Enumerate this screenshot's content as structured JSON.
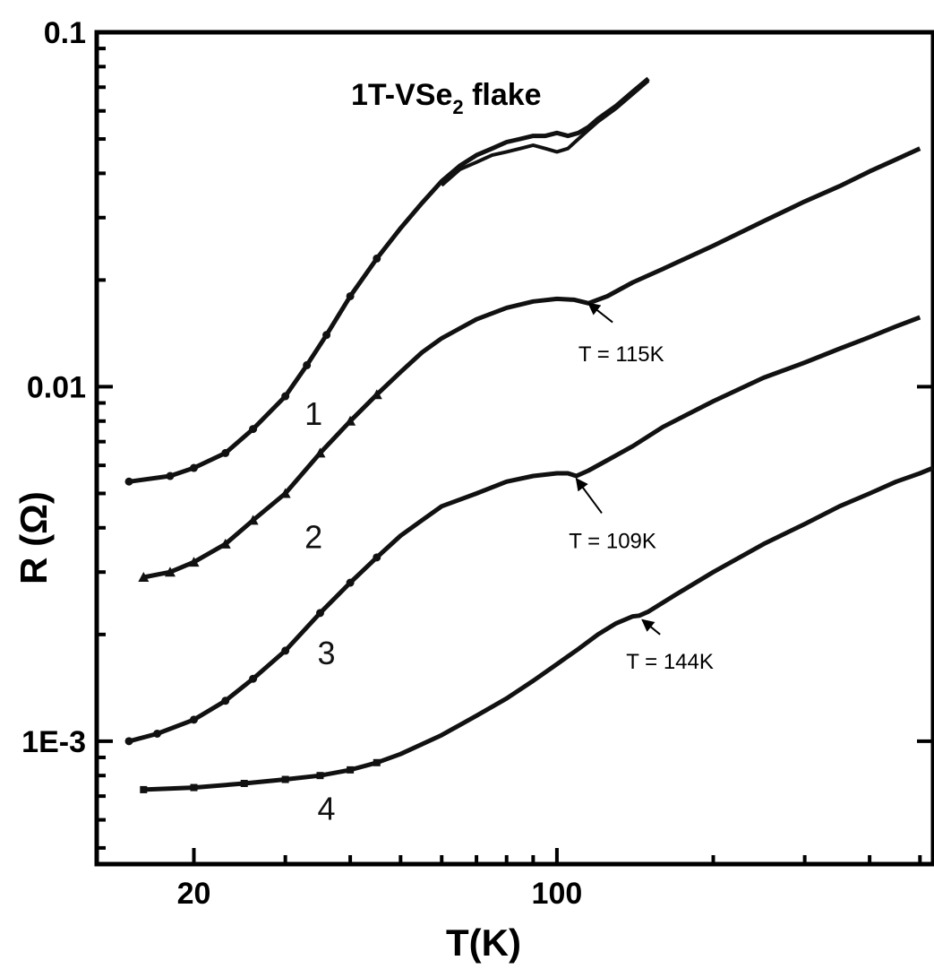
{
  "chart_data": {
    "type": "line",
    "title_main": "1T-VSe",
    "title_sub": "2",
    "title_tail": " flake",
    "xlabel": "T(K)",
    "ylabel": "R (Ω)",
    "xscale": "log",
    "yscale": "log",
    "xlim": [
      13,
      530
    ],
    "ylim": [
      0.00045,
      0.1
    ],
    "x_ticks": [
      {
        "value": 20,
        "label": "20"
      },
      {
        "value": 100,
        "label": "100"
      }
    ],
    "y_ticks": [
      {
        "value": 0.1,
        "label": "0.1"
      },
      {
        "value": 0.01,
        "label": "0.01"
      },
      {
        "value": 0.001,
        "label": "1E-3"
      }
    ],
    "series": [
      {
        "id": "1",
        "marker": "circle",
        "style": "double-line",
        "x": [
          15,
          18,
          20,
          23,
          26,
          30,
          33,
          36,
          40,
          45,
          50,
          55,
          60,
          65,
          70,
          75,
          80,
          85,
          90,
          95,
          100,
          105,
          110,
          115,
          120,
          130,
          140,
          150
        ],
        "y": [
          0.0054,
          0.0056,
          0.0059,
          0.0065,
          0.0076,
          0.0094,
          0.0115,
          0.014,
          0.018,
          0.023,
          0.028,
          0.033,
          0.038,
          0.042,
          0.045,
          0.047,
          0.049,
          0.05,
          0.051,
          0.051,
          0.052,
          0.051,
          0.052,
          0.054,
          0.057,
          0.062,
          0.068,
          0.074
        ],
        "y2": [
          null,
          null,
          null,
          null,
          null,
          null,
          null,
          null,
          null,
          null,
          null,
          null,
          0.037,
          0.041,
          0.043,
          0.045,
          0.046,
          0.047,
          0.048,
          0.047,
          0.046,
          0.047,
          0.05,
          0.053,
          0.056,
          0.061,
          0.067,
          0.073
        ]
      },
      {
        "id": "2",
        "marker": "triangle",
        "style": "line",
        "x": [
          16,
          18,
          20,
          23,
          26,
          30,
          35,
          40,
          45,
          50,
          55,
          60,
          70,
          80,
          90,
          100,
          108,
          115,
          125,
          140,
          160,
          200,
          250,
          300,
          350,
          400,
          450,
          500
        ],
        "y": [
          0.0029,
          0.003,
          0.0032,
          0.0036,
          0.0042,
          0.005,
          0.0065,
          0.008,
          0.0095,
          0.011,
          0.0125,
          0.0137,
          0.0155,
          0.0167,
          0.0174,
          0.0177,
          0.0176,
          0.0172,
          0.018,
          0.0197,
          0.0215,
          0.025,
          0.0293,
          0.0333,
          0.0368,
          0.0405,
          0.0438,
          0.047
        ]
      },
      {
        "id": "3",
        "marker": "circle",
        "style": "line",
        "x": [
          15,
          17,
          20,
          23,
          26,
          30,
          35,
          40,
          45,
          50,
          55,
          60,
          70,
          80,
          90,
          100,
          105,
          109,
          115,
          125,
          140,
          160,
          200,
          250,
          300,
          350,
          400,
          450,
          500
        ],
        "y": [
          0.001,
          0.00105,
          0.00115,
          0.0013,
          0.0015,
          0.0018,
          0.0023,
          0.0028,
          0.0033,
          0.0038,
          0.0042,
          0.0046,
          0.005,
          0.0054,
          0.0056,
          0.0057,
          0.0057,
          0.0056,
          0.0058,
          0.0062,
          0.0068,
          0.0077,
          0.0091,
          0.0106,
          0.0117,
          0.0128,
          0.0138,
          0.0148,
          0.0157
        ]
      },
      {
        "id": "4",
        "marker": "square",
        "style": "line",
        "x": [
          16,
          20,
          25,
          30,
          35,
          40,
          45,
          50,
          60,
          70,
          80,
          90,
          100,
          110,
          120,
          130,
          140,
          144,
          150,
          170,
          200,
          250,
          300,
          350,
          400,
          450,
          500,
          530
        ],
        "y": [
          0.00073,
          0.00074,
          0.00076,
          0.00078,
          0.0008,
          0.00083,
          0.00087,
          0.00092,
          0.00104,
          0.00118,
          0.00132,
          0.00148,
          0.00165,
          0.00182,
          0.002,
          0.00215,
          0.00225,
          0.00226,
          0.00232,
          0.0026,
          0.003,
          0.0036,
          0.0041,
          0.0046,
          0.005,
          0.0054,
          0.0057,
          0.0059
        ]
      }
    ],
    "curve_labels": [
      {
        "id": "1",
        "text": "1",
        "x": 34,
        "y": 0.0078
      },
      {
        "id": "2",
        "text": "2",
        "x": 34,
        "y": 0.0035
      },
      {
        "id": "3",
        "text": "3",
        "x": 36,
        "y": 0.00165
      },
      {
        "id": "4",
        "text": "4",
        "x": 36,
        "y": 0.0006
      }
    ],
    "annotations": [
      {
        "text": "T = 115K",
        "x": 133,
        "y": 0.0118,
        "arrow_from": [
          128,
          0.0152
        ],
        "arrow_to": [
          115,
          0.0172
        ]
      },
      {
        "text": "T = 109K",
        "x": 128,
        "y": 0.0035,
        "arrow_from": [
          122,
          0.0044
        ],
        "arrow_to": [
          109,
          0.0055
        ]
      },
      {
        "text": "T = 144K",
        "x": 165,
        "y": 0.0016,
        "arrow_from": [
          158,
          0.002
        ],
        "arrow_to": [
          146,
          0.0022
        ]
      }
    ]
  }
}
